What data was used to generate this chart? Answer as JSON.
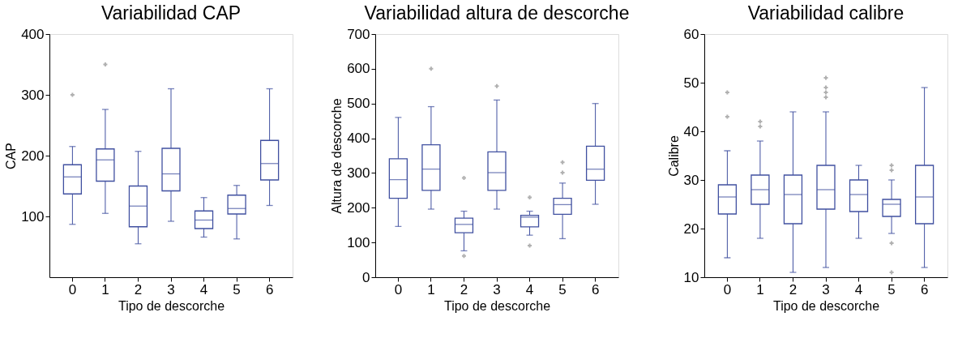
{
  "chart_data": [
    {
      "type": "box",
      "title": "Variabilidad CAP",
      "xlabel": "Tipo de descorche",
      "ylabel": "CAP",
      "categories": [
        "0",
        "1",
        "2",
        "3",
        "4",
        "5",
        "6"
      ],
      "ylim": [
        0,
        400
      ],
      "yticks": [
        100,
        200,
        300,
        400
      ],
      "grid": false,
      "series": [
        {
          "color": "#4050a0",
          "boxes": [
            {
              "low": 87,
              "q1": 137,
              "median": 165,
              "q3": 185,
              "high": 215,
              "outliers": [
                300
              ]
            },
            {
              "low": 105,
              "q1": 158,
              "median": 193,
              "q3": 211,
              "high": 276,
              "outliers": [
                350
              ]
            },
            {
              "low": 55,
              "q1": 83,
              "median": 117,
              "q3": 150,
              "high": 207
            },
            {
              "low": 92,
              "q1": 142,
              "median": 170,
              "q3": 212,
              "high": 310
            },
            {
              "low": 66,
              "q1": 80,
              "median": 94,
              "q3": 109,
              "high": 131
            },
            {
              "low": 63,
              "q1": 104,
              "median": 113,
              "q3": 135,
              "high": 151
            },
            {
              "low": 118,
              "q1": 160,
              "median": 187,
              "q3": 225,
              "high": 310
            }
          ]
        }
      ]
    },
    {
      "type": "box",
      "title": "Variabilidad altura de descorche",
      "xlabel": "Tipo de descorche",
      "ylabel": "Altura de descorche",
      "categories": [
        "0",
        "1",
        "2",
        "3",
        "4",
        "5",
        "6"
      ],
      "ylim": [
        0,
        700
      ],
      "yticks": [
        0,
        100,
        200,
        300,
        400,
        500,
        600,
        700
      ],
      "grid": false,
      "series": [
        {
          "color": "#4050a0",
          "boxes": [
            {
              "low": 146,
              "q1": 227,
              "median": 281,
              "q3": 341,
              "high": 460
            },
            {
              "low": 196,
              "q1": 250,
              "median": 311,
              "q3": 381,
              "high": 491,
              "outliers": [
                600
              ]
            },
            {
              "low": 76,
              "q1": 128,
              "median": 152,
              "q3": 170,
              "high": 190,
              "outliers": [
                286,
                61
              ]
            },
            {
              "low": 196,
              "q1": 250,
              "median": 301,
              "q3": 361,
              "high": 510,
              "outliers": [
                550
              ]
            },
            {
              "low": 121,
              "q1": 145,
              "median": 173,
              "q3": 178,
              "high": 190,
              "outliers": [
                230,
                91
              ]
            },
            {
              "low": 111,
              "q1": 181,
              "median": 209,
              "q3": 227,
              "high": 271,
              "outliers": [
                331,
                301
              ]
            },
            {
              "low": 210,
              "q1": 279,
              "median": 311,
              "q3": 377,
              "high": 500
            }
          ]
        }
      ]
    },
    {
      "type": "box",
      "title": "Variabilidad calibre",
      "xlabel": "Tipo de descorche",
      "ylabel": "Calibre",
      "categories": [
        "0",
        "1",
        "2",
        "3",
        "4",
        "5",
        "6"
      ],
      "ylim": [
        10,
        60
      ],
      "yticks": [
        10,
        20,
        30,
        40,
        50,
        60
      ],
      "grid": false,
      "series": [
        {
          "color": "#4050a0",
          "boxes": [
            {
              "low": 14,
              "q1": 23,
              "median": 26.5,
              "q3": 29,
              "high": 36,
              "outliers": [
                43,
                48
              ]
            },
            {
              "low": 18,
              "q1": 25,
              "median": 28,
              "q3": 31,
              "high": 38,
              "outliers": [
                41,
                42
              ]
            },
            {
              "low": 11,
              "q1": 21,
              "median": 27,
              "q3": 31,
              "high": 44
            },
            {
              "low": 12,
              "q1": 24,
              "median": 28,
              "q3": 33,
              "high": 44,
              "outliers": [
                47,
                48,
                49,
                51
              ]
            },
            {
              "low": 18,
              "q1": 23.5,
              "median": 27,
              "q3": 30,
              "high": 33
            },
            {
              "low": 19,
              "q1": 22.5,
              "median": 25,
              "q3": 26,
              "high": 30,
              "outliers": [
                17,
                32,
                33,
                11
              ]
            },
            {
              "low": 12,
              "q1": 21,
              "median": 26.5,
              "q3": 33,
              "high": 49
            }
          ]
        }
      ]
    }
  ]
}
